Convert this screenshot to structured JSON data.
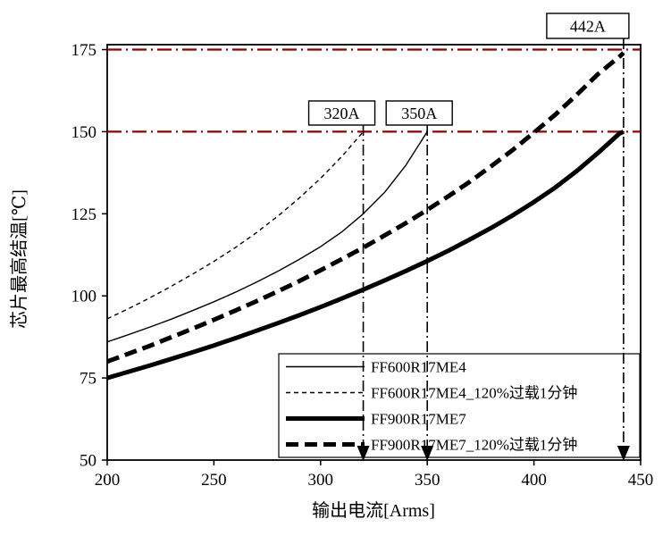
{
  "chart_data": {
    "type": "line",
    "title": "",
    "xlabel": "输出电流[Arms]",
    "ylabel": "芯片最高结温[℃]",
    "xlim": [
      200,
      450
    ],
    "ylim": [
      50,
      176.5
    ],
    "xticks": [
      200,
      250,
      300,
      350,
      400,
      450
    ],
    "yticks": [
      50,
      75,
      100,
      125,
      150,
      175
    ],
    "grid": false,
    "legend_position": "lower-right",
    "axis_color": "#000000",
    "curve_color": "#000000",
    "reference_color": "#8B0000",
    "series": [
      {
        "name": "FF600R17ME4",
        "style": "thin-solid",
        "x": [
          200,
          210,
          220,
          230,
          240,
          250,
          260,
          270,
          280,
          290,
          300,
          310,
          320,
          330,
          340,
          350
        ],
        "y": [
          86,
          88.2,
          90.5,
          92.9,
          95.5,
          98.2,
          101.1,
          104.2,
          107.5,
          111.1,
          115,
          119.5,
          125,
          131.5,
          139.8,
          150
        ]
      },
      {
        "name": "FF600R17ME4_120%过载1分钟",
        "style": "thin-dashed",
        "x": [
          200,
          210,
          220,
          230,
          240,
          250,
          260,
          270,
          280,
          290,
          300,
          310,
          320
        ],
        "y": [
          93,
          96.1,
          99.4,
          102.9,
          106.6,
          110.5,
          114.7,
          119.3,
          124.3,
          129.8,
          135.8,
          142.5,
          150
        ]
      },
      {
        "name": "FF900R17ME7",
        "style": "thick-solid",
        "x": [
          200,
          210,
          220,
          230,
          240,
          250,
          260,
          270,
          280,
          290,
          300,
          310,
          320,
          330,
          340,
          350,
          360,
          370,
          380,
          390,
          400,
          410,
          420,
          430,
          440,
          442
        ],
        "y": [
          75,
          76.9,
          78.8,
          80.8,
          82.8,
          84.9,
          87.1,
          89.4,
          91.7,
          94.1,
          96.6,
          99.2,
          101.9,
          104.7,
          107.6,
          110.6,
          113.8,
          117.2,
          120.7,
          124.5,
          128.6,
          133,
          138,
          143.5,
          149.4,
          150
        ]
      },
      {
        "name": "FF900R17ME7_120%过载1分钟",
        "style": "thick-dashed",
        "x": [
          200,
          210,
          220,
          230,
          240,
          250,
          260,
          270,
          280,
          290,
          300,
          310,
          320,
          330,
          340,
          350,
          360,
          370,
          380,
          390,
          400,
          410,
          420,
          430,
          440,
          442
        ],
        "y": [
          80,
          82.4,
          84.8,
          87.4,
          90,
          92.7,
          95.5,
          98.4,
          101.4,
          104.5,
          107.8,
          111.2,
          114.7,
          118.4,
          122.2,
          126.2,
          130.4,
          134.8,
          139.5,
          144.4,
          149.7,
          155.2,
          161.2,
          167.5,
          172.8,
          174
        ]
      }
    ],
    "reference_lines": [
      {
        "axis": "y",
        "value": 150,
        "color": "#8B0000",
        "style": "dash-dot"
      },
      {
        "axis": "y",
        "value": 175,
        "color": "#8B0000",
        "style": "dash-dot"
      }
    ],
    "annotations": [
      {
        "label": "320A",
        "x": 320
      },
      {
        "label": "350A",
        "x": 350
      },
      {
        "label": "442A",
        "x": 442
      }
    ]
  }
}
